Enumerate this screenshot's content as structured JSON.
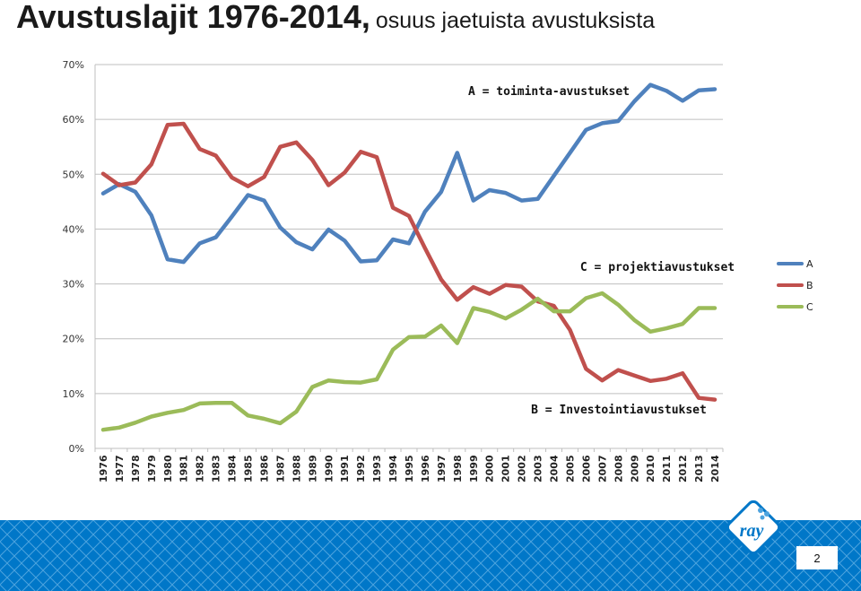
{
  "title": {
    "main": "Avustuslajit 1976-2014,",
    "sub": "osuus jaetuista avustuksista"
  },
  "chart_data": {
    "type": "line",
    "categories": [
      "1976",
      "1977",
      "1978",
      "1979",
      "1980",
      "1981",
      "1982",
      "1983",
      "1984",
      "1985",
      "1986",
      "1987",
      "1988",
      "1989",
      "1990",
      "1991",
      "1992",
      "1993",
      "1994",
      "1995",
      "1996",
      "1997",
      "1998",
      "1999",
      "2000",
      "2001",
      "2002",
      "2003",
      "2004",
      "2005",
      "2006",
      "2007",
      "2008",
      "2009",
      "2010",
      "2011",
      "2012",
      "2013",
      "2014"
    ],
    "ylim": [
      0,
      70
    ],
    "yticks": [
      "0%",
      "10%",
      "20%",
      "30%",
      "40%",
      "50%",
      "60%",
      "70%"
    ],
    "grid": true,
    "legend_position": "right",
    "series": [
      {
        "name": "A",
        "color": "#4f81bd",
        "values": [
          46.5,
          48.2,
          46.8,
          42.5,
          34.5,
          34.0,
          37.4,
          38.5,
          42.3,
          46.2,
          45.2,
          40.3,
          37.6,
          36.3,
          39.9,
          37.9,
          34.1,
          34.3,
          38.1,
          37.4,
          43.2,
          46.8,
          53.9,
          45.2,
          47.1,
          46.6,
          45.2,
          45.5,
          49.7,
          53.9,
          58.1,
          59.3,
          59.7,
          63.3,
          66.3,
          65.2,
          63.4,
          65.3,
          65.5
        ]
      },
      {
        "name": "B",
        "color": "#c0504d",
        "values": [
          50.1,
          48.0,
          48.5,
          51.8,
          59.0,
          59.2,
          54.6,
          53.4,
          49.4,
          47.8,
          49.5,
          55.0,
          55.8,
          52.6,
          48.0,
          50.3,
          54.1,
          53.1,
          43.9,
          42.4,
          36.5,
          30.8,
          27.1,
          29.4,
          28.2,
          29.8,
          29.5,
          26.8,
          26.0,
          21.6,
          14.5,
          12.4,
          14.3,
          13.3,
          12.3,
          12.7,
          13.7,
          9.2,
          8.9
        ]
      },
      {
        "name": "C",
        "color": "#9bbb59",
        "values": [
          3.4,
          3.8,
          4.7,
          5.8,
          6.5,
          7.0,
          8.2,
          8.3,
          8.3,
          6.0,
          5.4,
          4.6,
          6.7,
          11.2,
          12.4,
          12.1,
          12.0,
          12.6,
          18.0,
          20.3,
          20.4,
          22.4,
          19.2,
          25.6,
          24.9,
          23.7,
          25.3,
          27.3,
          25.0,
          25.0,
          27.4,
          28.3,
          26.2,
          23.4,
          21.3,
          21.9,
          22.7,
          25.6,
          25.6
        ]
      }
    ],
    "annotations": [
      {
        "series": "A",
        "text": "A = toiminta-avustukset"
      },
      {
        "series": "C",
        "text": "C = projektiavustukset"
      },
      {
        "series": "B",
        "text": "B = Investointiavustukset"
      }
    ]
  },
  "logo": {
    "text": "ray"
  },
  "page_number": "2",
  "colors": {
    "footer": "#0077c8",
    "axis": "#bfbfbf",
    "grid": "#bfbfbf"
  }
}
